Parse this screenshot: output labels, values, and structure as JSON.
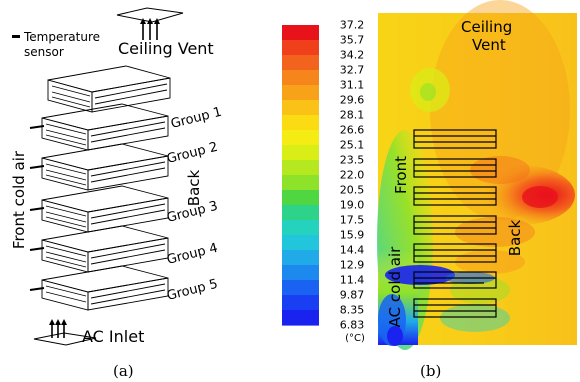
{
  "panel_a": {
    "sensor_label_line1": "Temperature",
    "sensor_label_line2": "sensor",
    "ceiling_vent": "Ceiling Vent",
    "groups": [
      "Group 1",
      "Group 2",
      "Group 3",
      "Group 4",
      "Group 5"
    ],
    "front_label": "Front cold air",
    "back_label": "Back",
    "inlet_label": "AC Inlet",
    "caption": "(a)"
  },
  "panel_b": {
    "ceiling_vent_line1": "Ceiling",
    "ceiling_vent_line2": "Vent",
    "front_label": "Front",
    "back_label": "Back",
    "cold_air_label": "AC cold air",
    "unit_label": "(°C)",
    "scale_values": [
      "37.2",
      "35.7",
      "34.2",
      "32.7",
      "31.1",
      "29.6",
      "28.1",
      "26.6",
      "25.1",
      "23.5",
      "22.0",
      "20.5",
      "19.0",
      "17.5",
      "15.9",
      "14.4",
      "12.9",
      "11.4",
      "9.87",
      "8.35",
      "6.83"
    ],
    "scale_colors": [
      "#e8121b",
      "#f0401b",
      "#f2641d",
      "#f6851c",
      "#f8a21a",
      "#fac117",
      "#fbdc12",
      "#f4ec12",
      "#d8ee16",
      "#b6e820",
      "#8fe22a",
      "#4fd640",
      "#2ed38a",
      "#24d2bd",
      "#22c6dc",
      "#20abe8",
      "#1d89ee",
      "#1a63f2",
      "#1a3ef2",
      "#1a22f0"
    ],
    "caption": "(b)"
  }
}
